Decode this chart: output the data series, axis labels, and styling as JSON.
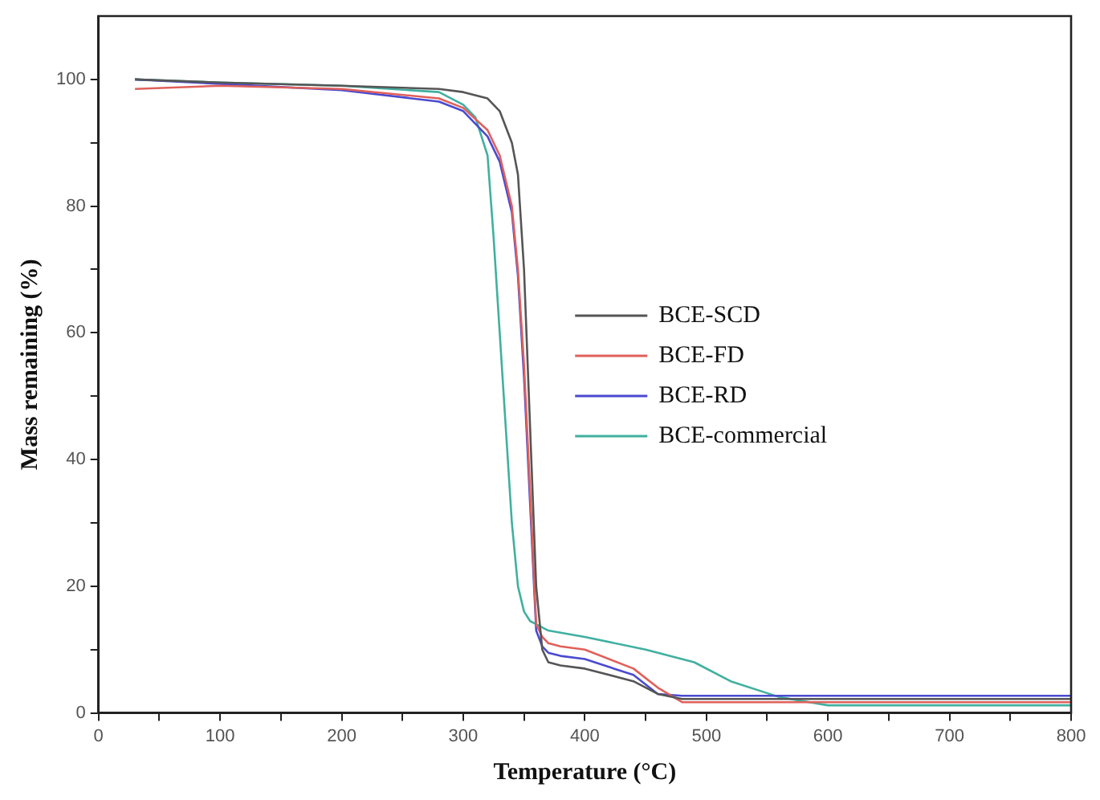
{
  "chart_data": {
    "type": "line",
    "xlabel": "Temperature (°C)",
    "ylabel": "Mass remaining (%)",
    "xlim": [
      0,
      800
    ],
    "ylim": [
      0,
      110
    ],
    "xticks": [
      0,
      {
        "value": 50,
        "label": null
      },
      100,
      {
        "value": 150,
        "label": null
      },
      200,
      {
        "value": 250,
        "label": null
      },
      300,
      {
        "value": 350,
        "label": null
      },
      400,
      {
        "value": 450,
        "label": null
      },
      500,
      {
        "value": 550,
        "label": null
      },
      600,
      {
        "value": 650,
        "label": null
      },
      700,
      {
        "value": 750,
        "label": null
      },
      800
    ],
    "yticks": [
      0,
      {
        "value": 10,
        "label": null
      },
      20,
      {
        "value": 30,
        "label": null
      },
      40,
      {
        "value": 50,
        "label": null
      },
      60,
      {
        "value": 70,
        "label": null
      },
      80,
      {
        "value": 90,
        "label": null
      },
      100
    ],
    "grid": false,
    "legend": "right",
    "marker": "none",
    "line_style": "solid",
    "x": [
      30,
      100,
      200,
      280,
      300,
      320,
      330,
      340,
      345,
      350,
      355,
      360,
      365,
      370,
      380,
      400,
      440,
      460,
      480,
      500,
      600,
      700,
      800
    ],
    "series": [
      {
        "name": "BCE-SCD",
        "color": "#555555",
        "values": [
          100,
          99.5,
          99,
          98.5,
          98,
          97,
          95,
          90,
          85,
          70,
          45,
          20,
          10,
          8,
          7.5,
          7,
          5,
          3,
          2.2,
          2.2,
          2.2,
          2.2,
          2.2
        ]
      },
      {
        "name": "BCE-FD",
        "color": "#e0605a",
        "values": [
          98.5,
          99,
          98.5,
          97,
          95.5,
          92,
          88,
          80,
          70,
          55,
          35,
          14,
          12,
          11,
          10.5,
          10,
          7,
          4,
          1.7,
          1.7,
          1.7,
          1.7,
          1.7
        ]
      },
      {
        "name": "BCE-RD",
        "color": "#4a4ad0",
        "values": [
          100,
          99.3,
          98.3,
          96.5,
          95,
          91,
          87,
          79,
          69,
          53,
          33,
          13,
          10.5,
          9.5,
          9,
          8.5,
          6,
          3,
          2.7,
          2.7,
          2.7,
          2.7,
          2.7
        ]
      },
      {
        "name": "BCE-commercial",
        "color": "#40b0a0",
        "x": [
          30,
          100,
          200,
          280,
          300,
          310,
          320,
          325,
          330,
          335,
          340,
          345,
          350,
          355,
          360,
          370,
          400,
          450,
          490,
          520,
          560,
          600,
          700,
          800
        ],
        "values": [
          100,
          99.5,
          99,
          98,
          96,
          94,
          88,
          75,
          60,
          45,
          30,
          20,
          16,
          14.5,
          14,
          13,
          12,
          10,
          8,
          5,
          2.5,
          1.2,
          1.2,
          1.2
        ]
      }
    ]
  }
}
